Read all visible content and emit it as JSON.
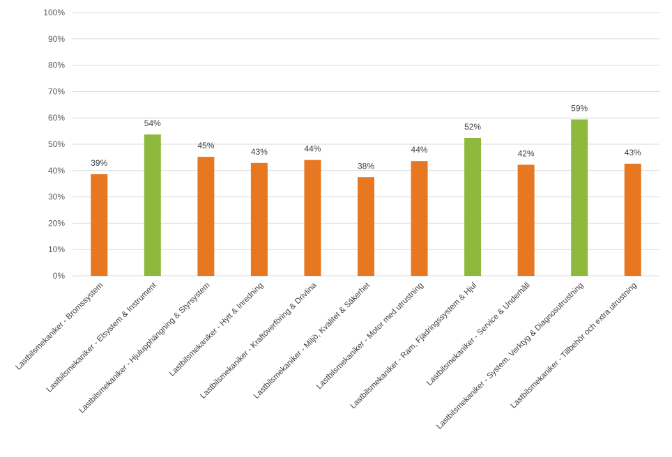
{
  "chart_data": {
    "type": "bar",
    "title": "",
    "xlabel": "",
    "ylabel": "",
    "ylim": [
      0,
      1
    ],
    "y_ticks": [
      "0%",
      "10%",
      "20%",
      "30%",
      "40%",
      "50%",
      "60%",
      "70%",
      "80%",
      "90%",
      "100%"
    ],
    "grid": true,
    "legend": "none",
    "categories": [
      "Lastbilsmekaniker - Bromssystem",
      "Lastbilsmekaniker - Elsystem & Instrument",
      "Lastbilsmekaniker - Hjulupphängning & Styrsystem",
      "Lastbilsmekaniker - Hytt & Inredning",
      "Lastbilsmekaniker - Kraftöverföring & Drivlina",
      "Lastbilsmekaniker - Miljö, Kvalitet & Säkerhet",
      "Lastbilsmekaniker - Motor med utrustning",
      "Lastbilsmekaniker - Ram, Fjädringssystem & Hjul",
      "Lastbilsmekaniker - Service & Underhåll",
      "Lastbilsmekaniker - System, Verktyg & Diagnosutrustning",
      "Lastbilsmekaniker - Tillbehör och extra utrustning"
    ],
    "values": [
      0.386,
      0.537,
      0.452,
      0.429,
      0.44,
      0.375,
      0.436,
      0.524,
      0.422,
      0.594,
      0.426
    ],
    "data_labels": [
      "39%",
      "54%",
      "45%",
      "43%",
      "44%",
      "38%",
      "44%",
      "52%",
      "42%",
      "59%",
      "43%"
    ],
    "colors": [
      "#e87722",
      "#8fb93d",
      "#e87722",
      "#e87722",
      "#e87722",
      "#e87722",
      "#e87722",
      "#8fb93d",
      "#e87722",
      "#8fb93d",
      "#e87722"
    ]
  }
}
